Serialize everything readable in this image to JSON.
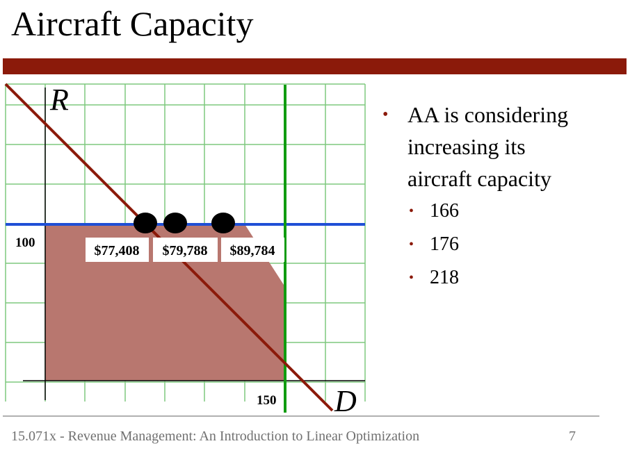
{
  "slide": {
    "title": "Aircraft Capacity",
    "footer": "15.071x - Revenue Management: An Introduction to Linear Optimization",
    "page_number": "7"
  },
  "bullets": {
    "main": "AA is considering increasing its aircraft capacity",
    "main_lines": [
      "AA is considering",
      "increasing its",
      "aircraft capacity"
    ],
    "sub_items": [
      "166",
      "176",
      "218"
    ]
  },
  "chart_data": {
    "type": "line",
    "x_axis_label": "D",
    "y_axis_label": "R",
    "tick_labels": {
      "y_100": "100",
      "x_150": "150"
    },
    "price_labels": [
      "$77,408",
      "$79,788",
      "$89,784"
    ],
    "colors": {
      "grid": "#7ec87e",
      "horizontal_constraint": "#1f4fd6",
      "vertical_constraint": "#109c10",
      "diagonal_constraint": "#8b1a0a",
      "feasible_region": "#b8776f",
      "points": "#000000"
    }
  }
}
